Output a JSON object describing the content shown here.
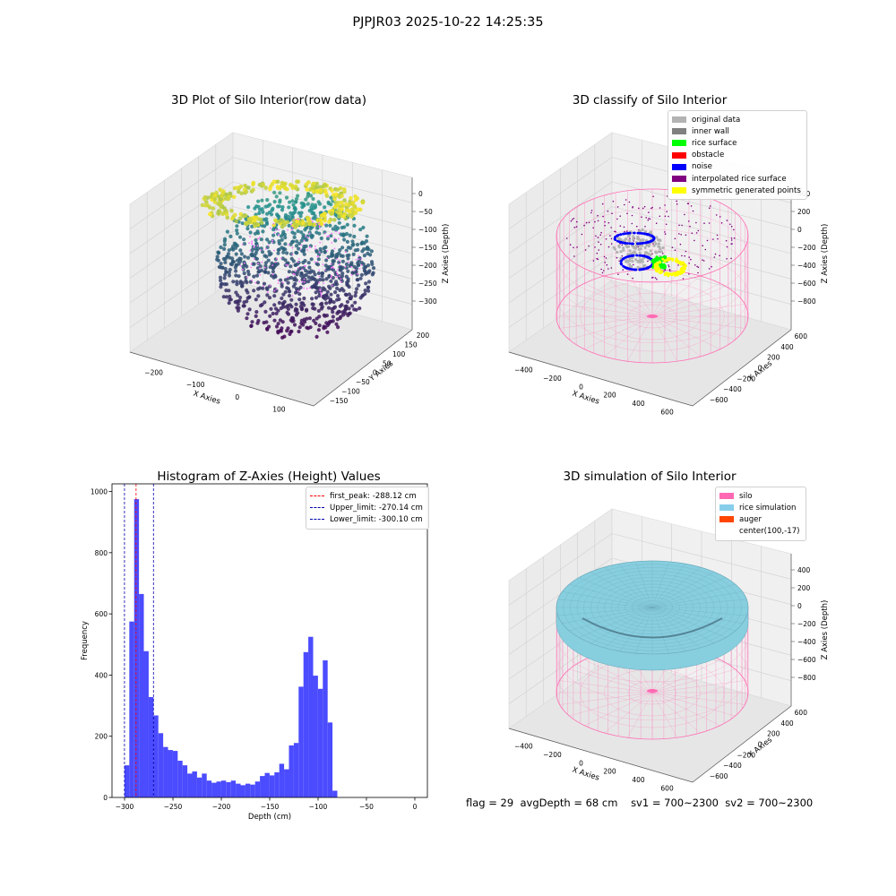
{
  "figure_title": "PJPJR03 2025-10-22 14:25:35",
  "colors": {
    "histogram_bar": "#4b4bff",
    "peak_line": "#ff0000",
    "limit_line": "#0000aa",
    "silo_wire": "#ff6eb4",
    "rice_surface": "#87cedf",
    "viridis_low": "#440154",
    "viridis_mid": "#21908d",
    "viridis_high": "#fde725"
  },
  "footer": {
    "flag": "flag = 29",
    "avg_depth": "avgDepth = 68 cm",
    "sv1": "sv1 = 700~2300",
    "sv2": "sv2 = 700~2300"
  },
  "chart_data": [
    {
      "type": "scatter",
      "title": "3D Plot of Silo Interior(row data)",
      "xlabel": "X Axies",
      "ylabel": "Y Axies",
      "zlabel": "Z Axies (Depth)",
      "x_ticks": [
        "−200",
        "−100",
        "0",
        "100"
      ],
      "y_ticks": [
        "200",
        "150",
        "100",
        "50",
        "0",
        "−50",
        "−100",
        "−150"
      ],
      "z_ticks": [
        "0",
        "−50",
        "−100",
        "−150",
        "−200",
        "−250",
        "−300"
      ],
      "colormap": "viridis",
      "grid": true
    },
    {
      "type": "scatter",
      "title": "3D classify of Silo Interior",
      "xlabel": "X Axies",
      "ylabel": "Y Axies",
      "zlabel": "Z Axies (Depth)",
      "x_ticks": [
        "−400",
        "−200",
        "0",
        "200",
        "400",
        "600"
      ],
      "y_ticks": [
        "600",
        "400",
        "200",
        "0",
        "−200",
        "−400",
        "−600"
      ],
      "z_ticks": [
        "400",
        "200",
        "0",
        "−200",
        "−400",
        "−600",
        "−800"
      ],
      "legend_position": "top-right",
      "legend": [
        {
          "label": "original data",
          "color": "#b3b3b3"
        },
        {
          "label": "inner wall",
          "color": "#808080"
        },
        {
          "label": "rice surface",
          "color": "#00ff00"
        },
        {
          "label": "obstacle",
          "color": "#ff0000"
        },
        {
          "label": "noise",
          "color": "#0000ff"
        },
        {
          "label": "interpolated rice surface",
          "color": "#800080"
        },
        {
          "label": "symmetric generated points",
          "color": "#ffff00"
        }
      ],
      "grid": true
    },
    {
      "type": "bar",
      "title": "Histogram of Z-Axies (Height) Values",
      "xlabel": "Depth (cm)",
      "ylabel": "Frequency",
      "xlim": [
        -313,
        13
      ],
      "ylim": [
        0,
        1025
      ],
      "x_ticks": [
        -300,
        -250,
        -200,
        -150,
        -100,
        -50,
        0
      ],
      "y_ticks": [
        0,
        200,
        400,
        600,
        800,
        1000
      ],
      "bin_start": -300.1,
      "bin_width": 5,
      "values": [
        105,
        575,
        975,
        665,
        478,
        328,
        268,
        210,
        165,
        155,
        152,
        120,
        105,
        78,
        85,
        65,
        78,
        55,
        48,
        52,
        55,
        50,
        55,
        45,
        40,
        45,
        42,
        52,
        70,
        80,
        72,
        82,
        110,
        92,
        170,
        178,
        362,
        475,
        525,
        398,
        355,
        448,
        245,
        22
      ],
      "reference_lines": [
        {
          "label": "first_peak: -288.12 cm",
          "x": -288.12,
          "color": "#ff0000"
        },
        {
          "label": "Upper_limit: -270.14 cm",
          "x": -270.14,
          "color": "#0000aa"
        },
        {
          "label": "Lower_limit: -300.10 cm",
          "x": -300.1,
          "color": "#0000aa"
        }
      ],
      "legend_position": "top-right",
      "grid": false
    },
    {
      "type": "area",
      "title": "3D simulation of Silo Interior",
      "xlabel": "X Axies",
      "ylabel": "Y Axies",
      "zlabel": "Z Axies (Depth)",
      "x_ticks": [
        "−400",
        "−200",
        "0",
        "200",
        "400",
        "600"
      ],
      "y_ticks": [
        "600",
        "400",
        "200",
        "0",
        "−200",
        "−400",
        "−600"
      ],
      "z_ticks": [
        "400",
        "200",
        "0",
        "−200",
        "−400",
        "−600",
        "−800"
      ],
      "legend_position": "top-right",
      "legend": [
        {
          "label": "silo",
          "color": "#ff69b4"
        },
        {
          "label": "rice simulation",
          "color": "#87ceeb"
        },
        {
          "label": "auger",
          "color": "#ff4500"
        },
        {
          "label": "center(100,-17)",
          "color": ""
        }
      ],
      "grid": true
    }
  ]
}
